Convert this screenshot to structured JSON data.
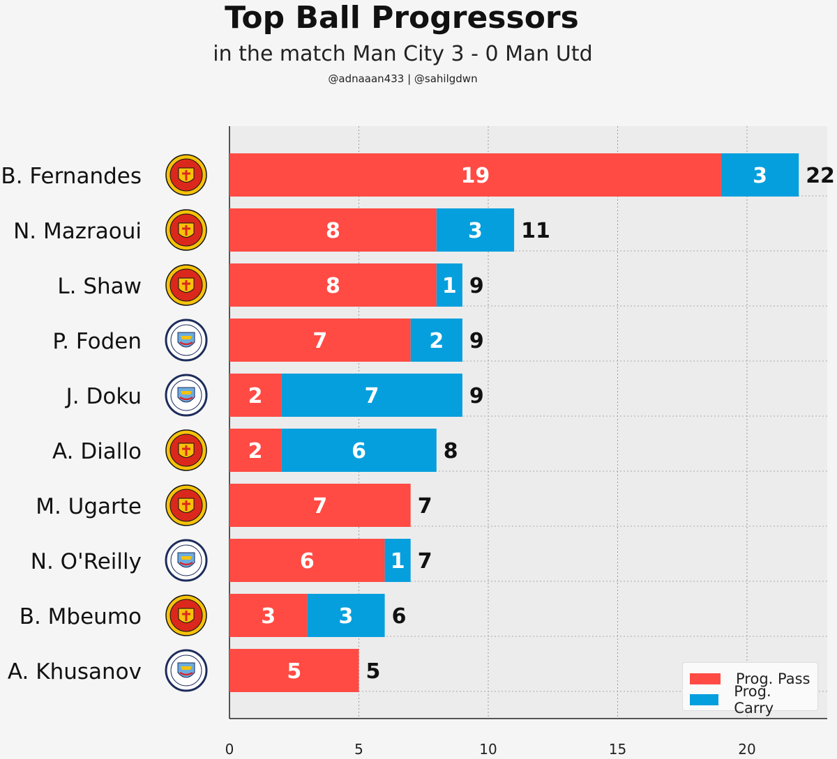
{
  "header": {
    "title": "Top Ball Progressors",
    "subtitle": "in the match Man City 3 - 0 Man Utd",
    "credits": "@adnaaan433  | @sahilgdwn"
  },
  "colors": {
    "pass": "#ff4b44",
    "carry": "#069fdd",
    "man_utd_badge": "#da291c",
    "man_city_badge": "#6caddf"
  },
  "chart_data": {
    "type": "bar",
    "orientation": "horizontal",
    "stacked": true,
    "categories": [
      "B. Fernandes",
      "N. Mazraoui",
      "L. Shaw",
      "P. Foden",
      "J. Doku",
      "A. Diallo",
      "M. Ugarte",
      "N. O'Reilly",
      "B. Mbeumo",
      "A. Khusanov"
    ],
    "teams": [
      "man-utd",
      "man-utd",
      "man-utd",
      "man-city",
      "man-city",
      "man-utd",
      "man-utd",
      "man-city",
      "man-utd",
      "man-city"
    ],
    "series": [
      {
        "name": "Prog. Pass",
        "values": [
          19,
          8,
          8,
          7,
          2,
          2,
          7,
          6,
          3,
          5
        ]
      },
      {
        "name": "Prog. Carry",
        "values": [
          3,
          3,
          1,
          2,
          7,
          6,
          0,
          1,
          3,
          0
        ]
      }
    ],
    "totals": [
      22,
      11,
      9,
      9,
      9,
      8,
      7,
      7,
      6,
      5
    ],
    "xlim": [
      0,
      23
    ],
    "xticks": [
      0,
      5,
      10,
      15,
      20
    ],
    "grid": true,
    "legend_position": "bottom-right"
  }
}
